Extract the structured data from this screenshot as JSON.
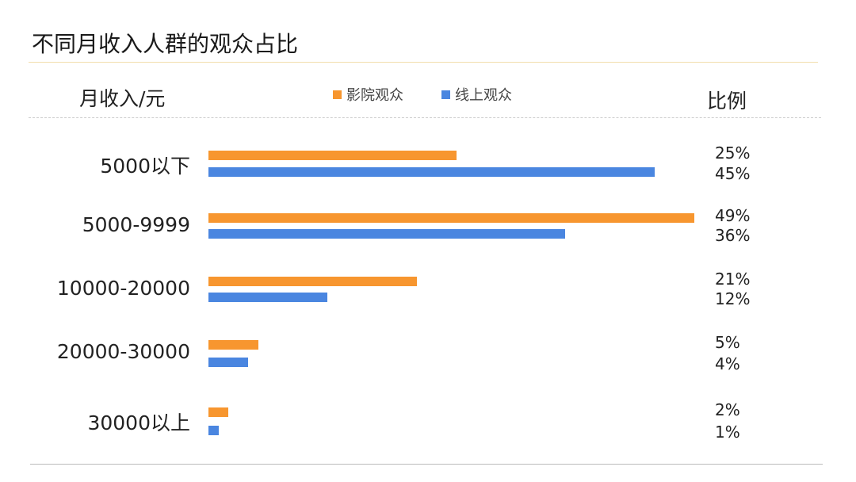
{
  "chart_data": {
    "type": "bar",
    "orientation": "horizontal",
    "title": "不同月收入人群的观众占比",
    "ylabel": "月收入/元",
    "value_column_label": "比例",
    "categories": [
      "5000以下",
      "5000-9999",
      "10000-20000",
      "20000-30000",
      "30000以上"
    ],
    "series": [
      {
        "name": "影院观众",
        "color": "#F7962F",
        "values": [
          25,
          49,
          21,
          5,
          2
        ],
        "labels": [
          "25%",
          "49%",
          "21%",
          "5%",
          "2%"
        ]
      },
      {
        "name": "线上观众",
        "color": "#4A86E0",
        "values": [
          45,
          36,
          12,
          4,
          1
        ],
        "labels": [
          "45%",
          "36%",
          "12%",
          "4%",
          "1%"
        ]
      }
    ],
    "legend": "top-center",
    "grid": false
  }
}
